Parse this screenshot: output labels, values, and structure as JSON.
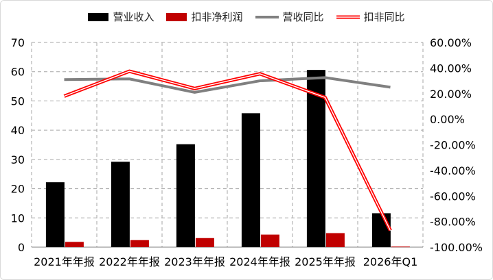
{
  "chart_data": {
    "type": "bar",
    "categories": [
      "2021年年报",
      "2022年年报",
      "2023年年报",
      "2024年年报",
      "2025年年报",
      "2026年Q1"
    ],
    "series": [
      {
        "name": "营业收入",
        "kind": "bar",
        "axis": "left",
        "color": "#000000",
        "values": [
          22.2,
          29.2,
          35.2,
          45.8,
          60.6,
          11.6
        ]
      },
      {
        "name": "扣非净利润",
        "kind": "bar",
        "axis": "left",
        "color": "#c00000",
        "values": [
          1.8,
          2.4,
          3.1,
          4.3,
          4.8,
          0.2
        ]
      },
      {
        "name": "营收同比",
        "kind": "line",
        "axis": "right",
        "color": "#808080",
        "values": [
          31.0,
          31.5,
          21.0,
          30.0,
          32.5,
          25.0
        ]
      },
      {
        "name": "扣非同比",
        "kind": "line",
        "axis": "right",
        "color": "#ff0000",
        "values": [
          18.0,
          37.5,
          24.0,
          35.5,
          17.0,
          -87.0
        ]
      }
    ],
    "y_left": {
      "min": 0,
      "max": 70,
      "step": 10,
      "ticks": [
        "0",
        "10",
        "20",
        "30",
        "40",
        "50",
        "60",
        "70"
      ]
    },
    "y_right": {
      "min": -100,
      "max": 60,
      "step": 20,
      "ticks": [
        "-100.00%",
        "-80.00%",
        "-60.00%",
        "-40.00%",
        "-20.00%",
        "0.00%",
        "20.00%",
        "40.00%",
        "60.00%"
      ]
    },
    "grid": true,
    "legend_position": "top"
  }
}
